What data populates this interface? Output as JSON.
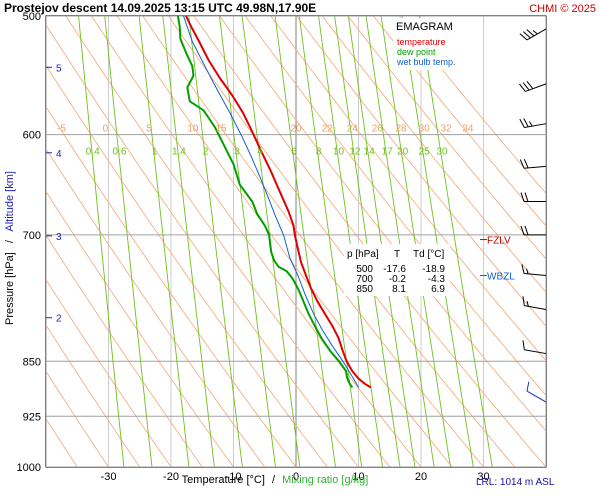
{
  "header": {
    "title": "Prostejov   descent   14.09.2025 13:15 UTC  49.98N,17.90E",
    "credit": "CHMI © 2025"
  },
  "legend": {
    "title": "EMAGRAM",
    "items": [
      {
        "label": "temperature",
        "color": "#e00000"
      },
      {
        "label": "dew point",
        "color": "#00a000"
      },
      {
        "label": "wet bulb temp.",
        "color": "#1060d0"
      }
    ]
  },
  "table": {
    "headers": [
      "p [hPa]",
      "T",
      "Td [°C]"
    ],
    "rows": [
      [
        "500",
        "-17.6",
        "-18.9"
      ],
      [
        "700",
        "-0.2",
        "-4.3"
      ],
      [
        "850",
        "8.1",
        "6.9"
      ]
    ]
  },
  "markers": [
    {
      "label": "FZLV",
      "color": "#c00000",
      "pressure": 705
    },
    {
      "label": "WBZL",
      "color": "#1060d0",
      "pressure": 745
    }
  ],
  "footer": {
    "xlabel_temp": "Temperature [°C]",
    "xlabel_sep": "/",
    "xlabel_mix": "Mixing ratio [g/kg]",
    "lrl": "LRL: 1014 m ASL"
  },
  "yaxis": {
    "label_pressure": "Pressure [hPa]",
    "label_sep": "/",
    "label_altitude": "Altitude [km]"
  },
  "colors": {
    "temperature": "#e00000",
    "dewpoint": "#00a000",
    "wetbulb": "#1060d0",
    "isotherm": "#c0c0c0",
    "dry_adiabat": "#f4b080",
    "mixing_ratio": "#70c020",
    "pressure_grid": "#a0a0a0",
    "altitude": "#2020c0"
  },
  "chart_data": {
    "type": "line",
    "title": "Prostejov   descent   14.09.2025 13:15 UTC  49.98N,17.90E",
    "xlabel": "Temperature [°C] / Mixing ratio [g/kg]",
    "ylabel": "Pressure [hPa] / Altitude [km]",
    "xlim": [
      -40,
      40
    ],
    "ylim": [
      1000,
      500
    ],
    "y_scale": "log",
    "x_ticks": [
      -30,
      -20,
      -10,
      0,
      10,
      20,
      30
    ],
    "y_ticks": [
      500,
      600,
      700,
      850,
      925,
      1000
    ],
    "altitude_ticks_km": [
      {
        "km": 2,
        "pressure": 795
      },
      {
        "km": 3,
        "pressure": 701
      },
      {
        "km": 4,
        "pressure": 617
      },
      {
        "km": 5,
        "pressure": 541
      }
    ],
    "dry_adiabat_labels": [
      -5,
      0,
      5,
      10,
      15,
      20,
      22,
      24,
      26,
      28,
      30,
      32,
      34
    ],
    "dry_adiabat_surface_temps": [
      -50,
      -45,
      -40,
      -35,
      -30,
      -25,
      -20,
      -15,
      -10,
      -5,
      0,
      5,
      10,
      15,
      20,
      25,
      30,
      35,
      40,
      45,
      50,
      55,
      60,
      65,
      70,
      75,
      80
    ],
    "mixing_ratio_labels": [
      "0.4",
      "0.6",
      "1",
      "1.4",
      "2",
      "3",
      "4",
      "6",
      "8",
      "10",
      "12",
      "14",
      "17",
      "20",
      "25",
      "30"
    ],
    "mixing_ratio_values": [
      0.4,
      0.6,
      1,
      1.4,
      2,
      3,
      4,
      6,
      8,
      10,
      12,
      14,
      17,
      20,
      25,
      30
    ],
    "series": [
      {
        "name": "temperature",
        "points": [
          [
            12.0,
            885
          ],
          [
            11.0,
            880
          ],
          [
            10.0,
            873
          ],
          [
            9.0,
            863
          ],
          [
            8.1,
            850
          ],
          [
            7.4,
            835
          ],
          [
            6.8,
            820
          ],
          [
            5.8,
            805
          ],
          [
            4.6,
            790
          ],
          [
            3.4,
            775
          ],
          [
            2.4,
            760
          ],
          [
            1.6,
            745
          ],
          [
            0.8,
            730
          ],
          [
            0.3,
            715
          ],
          [
            -0.2,
            700
          ],
          [
            -0.4,
            690
          ],
          [
            -1.2,
            675
          ],
          [
            -2.6,
            655
          ],
          [
            -4.0,
            635
          ],
          [
            -5.6,
            615
          ],
          [
            -7.2,
            595
          ],
          [
            -8.5,
            580
          ],
          [
            -10.2,
            565
          ],
          [
            -12.2,
            550
          ],
          [
            -14.0,
            535
          ],
          [
            -15.5,
            520
          ],
          [
            -16.8,
            508
          ],
          [
            -17.6,
            500
          ]
        ]
      },
      {
        "name": "dew point",
        "points": [
          [
            9.0,
            885
          ],
          [
            8.6,
            880
          ],
          [
            8.2,
            873
          ],
          [
            8.0,
            863
          ],
          [
            6.9,
            850
          ],
          [
            5.6,
            838
          ],
          [
            4.2,
            822
          ],
          [
            3.2,
            808
          ],
          [
            2.0,
            790
          ],
          [
            1.0,
            772
          ],
          [
            0.3,
            760
          ],
          [
            -0.6,
            748
          ],
          [
            -1.5,
            740
          ],
          [
            -2.8,
            735
          ],
          [
            -3.5,
            728
          ],
          [
            -4.0,
            718
          ],
          [
            -4.3,
            700
          ],
          [
            -5.0,
            690
          ],
          [
            -6.2,
            678
          ],
          [
            -7.0,
            665
          ],
          [
            -9.0,
            648
          ],
          [
            -10.0,
            628
          ],
          [
            -11.5,
            610
          ],
          [
            -13.0,
            593
          ],
          [
            -14.8,
            578
          ],
          [
            -17.0,
            570
          ],
          [
            -17.4,
            558
          ],
          [
            -16.4,
            548
          ],
          [
            -16.6,
            540
          ],
          [
            -17.5,
            530
          ],
          [
            -18.5,
            518
          ],
          [
            -18.6,
            508
          ],
          [
            -18.9,
            500
          ]
        ]
      },
      {
        "name": "wet bulb temp.",
        "points": [
          [
            10.0,
            885
          ],
          [
            9.2,
            873
          ],
          [
            7.5,
            850
          ],
          [
            5.8,
            830
          ],
          [
            4.2,
            810
          ],
          [
            2.8,
            790
          ],
          [
            1.5,
            768
          ],
          [
            0.3,
            745
          ],
          [
            -1.0,
            725
          ],
          [
            -2.0,
            700
          ],
          [
            -3.3,
            680
          ],
          [
            -4.5,
            660
          ],
          [
            -5.8,
            640
          ],
          [
            -7.2,
            620
          ],
          [
            -8.8,
            600
          ],
          [
            -10.6,
            580
          ],
          [
            -12.6,
            560
          ],
          [
            -14.6,
            540
          ],
          [
            -16.6,
            520
          ],
          [
            -18.0,
            500
          ]
        ]
      }
    ],
    "wind_barbs": [
      {
        "pressure": 510,
        "direction": 300,
        "speed_kt": 35
      },
      {
        "pressure": 555,
        "direction": 290,
        "speed_kt": 30
      },
      {
        "pressure": 590,
        "direction": 280,
        "speed_kt": 25
      },
      {
        "pressure": 630,
        "direction": 275,
        "speed_kt": 20
      },
      {
        "pressure": 665,
        "direction": 270,
        "speed_kt": 20
      },
      {
        "pressure": 700,
        "direction": 270,
        "speed_kt": 20
      },
      {
        "pressure": 745,
        "direction": 265,
        "speed_kt": 15
      },
      {
        "pressure": 785,
        "direction": 260,
        "speed_kt": 15
      },
      {
        "pressure": 840,
        "direction": 260,
        "speed_kt": 10
      },
      {
        "pressure": 905,
        "direction": 240,
        "speed_kt": 10
      }
    ],
    "grid": true
  }
}
